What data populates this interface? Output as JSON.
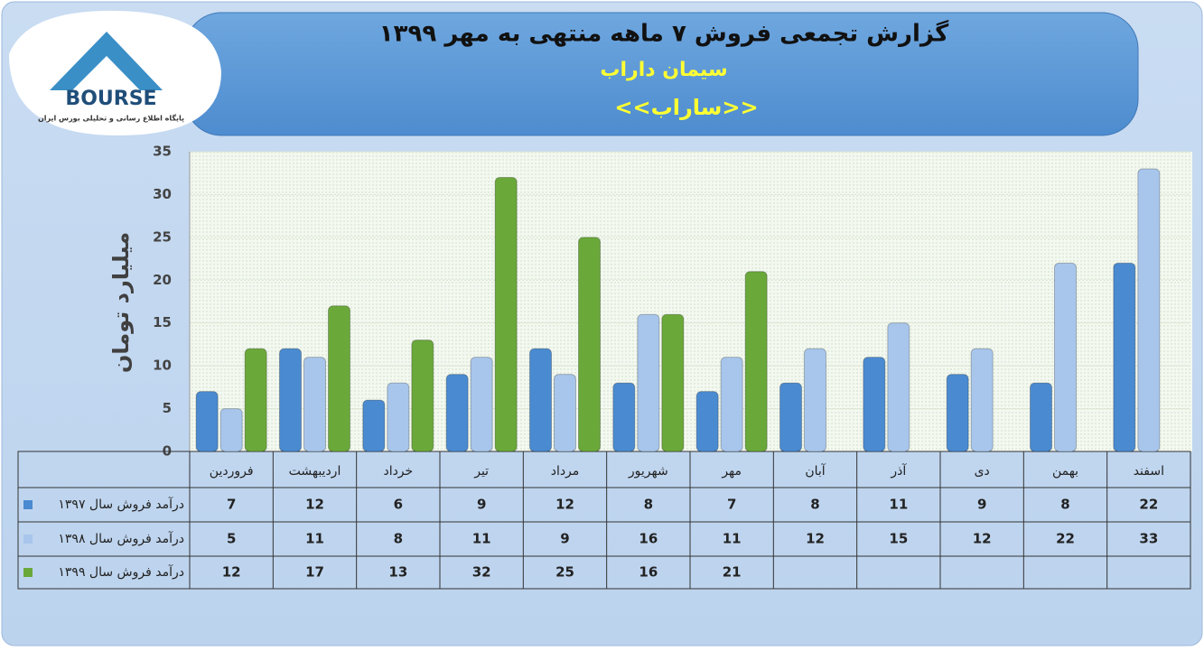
{
  "logo": {
    "name": "BOURSE",
    "tagline": "پایگاه اطلاع رسانی و تحلیلی بورس ایران"
  },
  "chart_data": {
    "type": "bar",
    "title": "گزارش تجمعی فروش ۷ ماهه منتهی به مهر ۱۳۹۹",
    "subtitle": "سیمان داراب",
    "subtitle2": "<<ساراب>>",
    "y_label": "میلیارد تومان",
    "categories": [
      "فروردین",
      "اردیبهشت",
      "خرداد",
      "تیر",
      "مرداد",
      "شهریور",
      "مهر",
      "آبان",
      "آذر",
      "دی",
      "بهمن",
      "اسفند"
    ],
    "series": [
      {
        "name": "درآمد فروش سال ۱۳۹۷",
        "color": "#4a8ad0",
        "values": [
          7,
          12,
          6,
          9,
          12,
          8,
          7,
          8,
          11,
          9,
          8,
          22
        ]
      },
      {
        "name": "درآمد فروش سال ۱۳۹۸",
        "color": "#a8c6ec",
        "values": [
          5,
          11,
          8,
          11,
          9,
          16,
          11,
          12,
          15,
          12,
          22,
          33
        ]
      },
      {
        "name": "درآمد فروش سال ۱۳۹۹",
        "color": "#6aa83a",
        "values": [
          12,
          17,
          13,
          32,
          25,
          16,
          21,
          null,
          null,
          null,
          null,
          null
        ]
      }
    ],
    "ylim": [
      0,
      35
    ],
    "yticks": [
      0,
      5,
      10,
      15,
      20,
      25,
      30,
      35
    ],
    "grid": true
  }
}
